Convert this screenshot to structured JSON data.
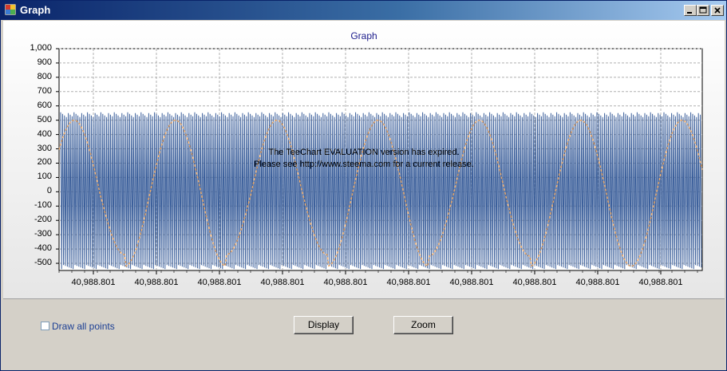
{
  "window": {
    "title": "Graph",
    "buttons": [
      "minimize",
      "maximize",
      "close"
    ]
  },
  "chart": {
    "title": "Graph",
    "watermark_line1": "The TeeChart EVALUATION version has expired.",
    "watermark_line2": "Please see http://www.steema.com for a current release."
  },
  "controls": {
    "draw_all_points_label": "Draw all points",
    "draw_all_points_checked": false,
    "display_button": "Display",
    "zoom_button": "Zoom"
  },
  "colors": {
    "signal": "#3b5f9b",
    "sine": "#e8a86a",
    "title": "#1c1c8c"
  },
  "chart_data": {
    "type": "line",
    "title": "Graph",
    "ylim": [
      -550,
      1000
    ],
    "y_ticks": [
      "1,000",
      "900",
      "800",
      "700",
      "600",
      "500",
      "400",
      "300",
      "200",
      "100",
      "0",
      "-100",
      "-200",
      "-300",
      "-400",
      "-500"
    ],
    "x_ticks": [
      "40,988.801",
      "40,988.801",
      "40,988.801",
      "40,988.801",
      "40,988.801",
      "40,988.801",
      "40,988.801",
      "40,988.801",
      "40,988.801",
      "40,988.801"
    ],
    "grid": true,
    "series": [
      {
        "style": "dense oscillation",
        "amplitude_range": [
          -540,
          555
        ]
      },
      {
        "style": "dashed sine",
        "peaks": [
          500,
          500,
          500,
          500,
          500,
          500
        ],
        "troughs": [
          -440,
          -520,
          -440,
          -520,
          -450,
          -520
        ],
        "cycles": 6
      }
    ]
  }
}
